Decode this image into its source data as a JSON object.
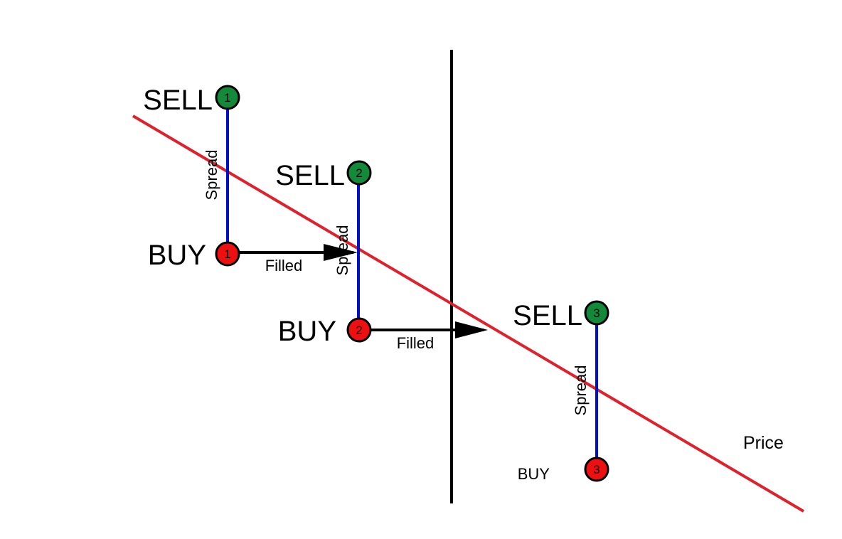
{
  "colors": {
    "price_line": "#e0202a",
    "spread_line": "#0010c8",
    "sell_node": "#138a3a",
    "buy_node": "#ee1010",
    "divider": "#000000",
    "arrow": "#000000"
  },
  "labels": {
    "sell_1": "SELL",
    "sell_2": "SELL",
    "sell_3": "SELL",
    "buy_1": "BUY",
    "buy_2": "BUY",
    "buy_3": "BUY",
    "spread_1": "Spread",
    "spread_2": "Spread",
    "spread_3": "Spread",
    "filled_1": "Filled",
    "filled_2": "Filled",
    "price": "Price",
    "sell_node_1": "1",
    "sell_node_2": "2",
    "sell_node_3": "3",
    "buy_node_1": "1",
    "buy_node_2": "2",
    "buy_node_3": "3"
  }
}
